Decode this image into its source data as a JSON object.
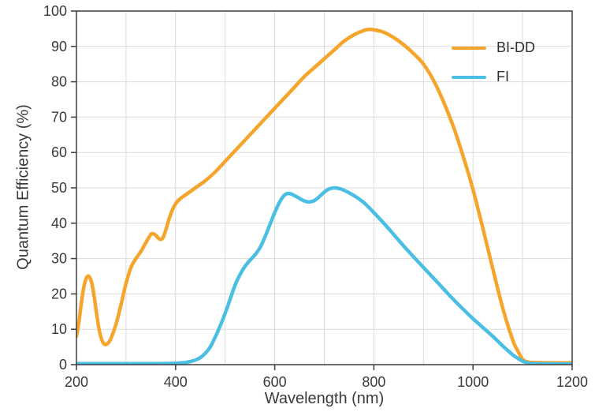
{
  "chart_data": {
    "type": "line",
    "title": "",
    "xlabel": "Wavelength (nm)",
    "ylabel": "Quantum Efficiency (%)",
    "xlim": [
      200,
      1200
    ],
    "ylim": [
      0,
      100
    ],
    "x_ticks": [
      200,
      400,
      600,
      800,
      1000,
      1200
    ],
    "y_ticks": [
      0,
      10,
      20,
      30,
      40,
      50,
      60,
      70,
      80,
      90,
      100
    ],
    "grid": true,
    "x_grid_step": 100,
    "y_grid_step": 10,
    "legend_position": "top-right",
    "series": [
      {
        "name": "BI-DD",
        "color": "#F5A52B",
        "points": [
          [
            200,
            8
          ],
          [
            205,
            12
          ],
          [
            210,
            17.5
          ],
          [
            215,
            22
          ],
          [
            220,
            24.5
          ],
          [
            225,
            25
          ],
          [
            230,
            23.5
          ],
          [
            235,
            20
          ],
          [
            240,
            15
          ],
          [
            245,
            10.5
          ],
          [
            250,
            7.5
          ],
          [
            255,
            6
          ],
          [
            260,
            5.7
          ],
          [
            265,
            6.3
          ],
          [
            270,
            7.5
          ],
          [
            280,
            11.5
          ],
          [
            290,
            17
          ],
          [
            300,
            23
          ],
          [
            310,
            27.5
          ],
          [
            320,
            30
          ],
          [
            330,
            32
          ],
          [
            340,
            34.5
          ],
          [
            350,
            36.8
          ],
          [
            355,
            37
          ],
          [
            360,
            36.6
          ],
          [
            365,
            35.8
          ],
          [
            370,
            35.4
          ],
          [
            375,
            36
          ],
          [
            380,
            38
          ],
          [
            390,
            42.5
          ],
          [
            400,
            45.5
          ],
          [
            410,
            47
          ],
          [
            420,
            48
          ],
          [
            430,
            49
          ],
          [
            440,
            50
          ],
          [
            450,
            51
          ],
          [
            460,
            52
          ],
          [
            480,
            54.5
          ],
          [
            500,
            57.5
          ],
          [
            520,
            60.5
          ],
          [
            540,
            63.5
          ],
          [
            560,
            66.5
          ],
          [
            580,
            69.5
          ],
          [
            600,
            72.5
          ],
          [
            620,
            75.5
          ],
          [
            640,
            78.5
          ],
          [
            660,
            81.5
          ],
          [
            680,
            84
          ],
          [
            700,
            86.5
          ],
          [
            720,
            89
          ],
          [
            740,
            91.5
          ],
          [
            760,
            93.3
          ],
          [
            780,
            94.5
          ],
          [
            790,
            94.8
          ],
          [
            800,
            94.7
          ],
          [
            820,
            94
          ],
          [
            840,
            92.5
          ],
          [
            860,
            90.5
          ],
          [
            880,
            88
          ],
          [
            900,
            85
          ],
          [
            920,
            80.5
          ],
          [
            940,
            74.5
          ],
          [
            960,
            67.5
          ],
          [
            980,
            59
          ],
          [
            1000,
            49.5
          ],
          [
            1020,
            38.5
          ],
          [
            1040,
            27
          ],
          [
            1060,
            16
          ],
          [
            1080,
            7
          ],
          [
            1090,
            4
          ],
          [
            1100,
            1.5
          ],
          [
            1110,
            0.8
          ],
          [
            1120,
            0.6
          ],
          [
            1160,
            0.5
          ],
          [
            1200,
            0.5
          ]
        ]
      },
      {
        "name": "FI",
        "color": "#4BBEE3",
        "points": [
          [
            200,
            0.3
          ],
          [
            250,
            0.3
          ],
          [
            300,
            0.3
          ],
          [
            350,
            0.3
          ],
          [
            400,
            0.4
          ],
          [
            410,
            0.5
          ],
          [
            420,
            0.6
          ],
          [
            430,
            0.9
          ],
          [
            440,
            1.3
          ],
          [
            450,
            2
          ],
          [
            460,
            3.2
          ],
          [
            470,
            5
          ],
          [
            480,
            7.8
          ],
          [
            490,
            11
          ],
          [
            500,
            14.5
          ],
          [
            510,
            18.5
          ],
          [
            520,
            22.5
          ],
          [
            530,
            25.5
          ],
          [
            540,
            27.8
          ],
          [
            550,
            29.5
          ],
          [
            560,
            31
          ],
          [
            570,
            33
          ],
          [
            580,
            36
          ],
          [
            590,
            39.5
          ],
          [
            600,
            43
          ],
          [
            610,
            46
          ],
          [
            620,
            48
          ],
          [
            630,
            48.4
          ],
          [
            640,
            47.8
          ],
          [
            650,
            47
          ],
          [
            660,
            46.3
          ],
          [
            670,
            46
          ],
          [
            680,
            46.4
          ],
          [
            690,
            47.5
          ],
          [
            700,
            48.8
          ],
          [
            710,
            49.7
          ],
          [
            720,
            50
          ],
          [
            730,
            49.8
          ],
          [
            740,
            49.3
          ],
          [
            760,
            47.8
          ],
          [
            780,
            45.8
          ],
          [
            800,
            43
          ],
          [
            820,
            40
          ],
          [
            840,
            36.8
          ],
          [
            860,
            33.6
          ],
          [
            880,
            30.5
          ],
          [
            900,
            27.5
          ],
          [
            920,
            24.5
          ],
          [
            940,
            21.5
          ],
          [
            960,
            18.5
          ],
          [
            980,
            15.7
          ],
          [
            1000,
            13
          ],
          [
            1020,
            10.5
          ],
          [
            1040,
            8
          ],
          [
            1060,
            5.3
          ],
          [
            1080,
            2.8
          ],
          [
            1090,
            1.8
          ],
          [
            1100,
            1
          ],
          [
            1110,
            0.5
          ],
          [
            1120,
            0.3
          ],
          [
            1160,
            0.2
          ],
          [
            1200,
            0.2
          ]
        ]
      }
    ],
    "colors": {
      "grid": "#dcdcdc",
      "border": "#3f3f3f",
      "tick_text": "#3a3a3a"
    }
  }
}
